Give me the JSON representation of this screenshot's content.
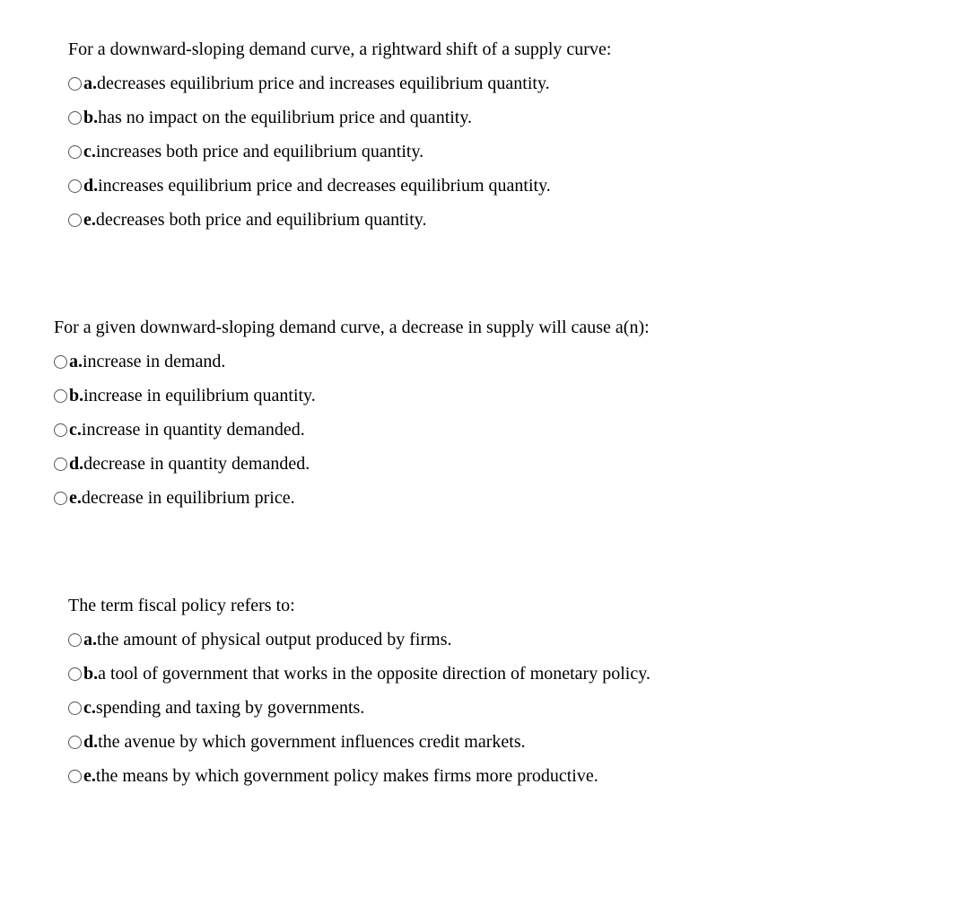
{
  "questions": [
    {
      "indentClass": "indent-1",
      "text": "For a downward-sloping demand curve, a rightward shift of a supply curve:",
      "options": [
        {
          "letter": "a.",
          "text": " decreases equilibrium price and increases equilibrium quantity."
        },
        {
          "letter": "b.",
          "text": " has no impact on the equilibrium price and quantity."
        },
        {
          "letter": "c.",
          "text": " increases both price and equilibrium quantity."
        },
        {
          "letter": "d.",
          "text": " increases equilibrium price and decreases equilibrium quantity."
        },
        {
          "letter": "e.",
          "text": " decreases both price and equilibrium quantity."
        }
      ]
    },
    {
      "indentClass": "indent-0",
      "text": "For a given downward-sloping demand curve, a decrease in supply will cause a(n):",
      "options": [
        {
          "letter": "a.",
          "text": " increase in demand."
        },
        {
          "letter": "b.",
          "text": " increase in equilibrium quantity."
        },
        {
          "letter": "c.",
          "text": " increase in quantity demanded."
        },
        {
          "letter": "d.",
          "text": " decrease in quantity demanded."
        },
        {
          "letter": "e.",
          "text": " decrease in equilibrium price."
        }
      ]
    },
    {
      "indentClass": "indent-1",
      "text": "The term fiscal policy refers to:",
      "options": [
        {
          "letter": "a.",
          "text": " the amount of physical output produced by firms."
        },
        {
          "letter": "b.",
          "text": " a tool of government that works in the opposite direction of monetary policy."
        },
        {
          "letter": "c.",
          "text": " spending and taxing by governments."
        },
        {
          "letter": "d.",
          "text": " the avenue by which government influences credit markets."
        },
        {
          "letter": "e.",
          "text": " the means by which government policy makes firms more productive."
        }
      ]
    }
  ]
}
